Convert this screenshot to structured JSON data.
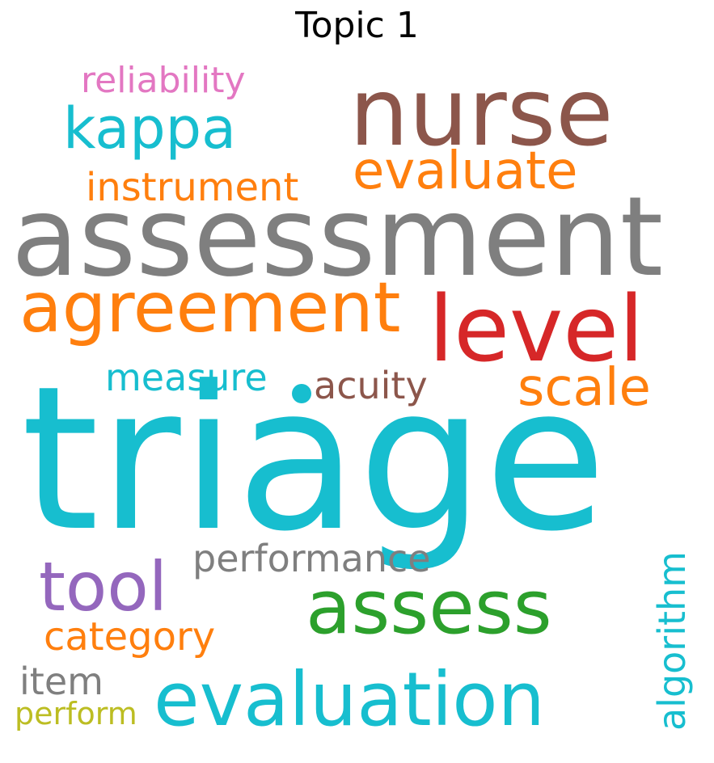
{
  "title": "Topic 1",
  "words": [
    {
      "text": "triage",
      "color": "#17becf"
    },
    {
      "text": "assessment",
      "color": "#7f7f7f"
    },
    {
      "text": "nurse",
      "color": "#8c564b"
    },
    {
      "text": "agreement",
      "color": "#ff7f0e"
    },
    {
      "text": "level",
      "color": "#d62728"
    },
    {
      "text": "evaluation",
      "color": "#17becf"
    },
    {
      "text": "assess",
      "color": "#2ca02c"
    },
    {
      "text": "kappa",
      "color": "#17becf"
    },
    {
      "text": "evaluate",
      "color": "#ff7f0e"
    },
    {
      "text": "tool",
      "color": "#9467bd"
    },
    {
      "text": "scale",
      "color": "#ff7f0e"
    },
    {
      "text": "performance",
      "color": "#7f7f7f"
    },
    {
      "text": "reliability",
      "color": "#e377c2"
    },
    {
      "text": "instrument",
      "color": "#ff7f0e"
    },
    {
      "text": "measure",
      "color": "#17becf"
    },
    {
      "text": "acuity",
      "color": "#8c564b"
    },
    {
      "text": "category",
      "color": "#ff7f0e"
    },
    {
      "text": "algorithm",
      "color": "#17becf"
    },
    {
      "text": "item",
      "color": "#7f7f7f"
    },
    {
      "text": "perform",
      "color": "#bcbd22"
    }
  ]
}
